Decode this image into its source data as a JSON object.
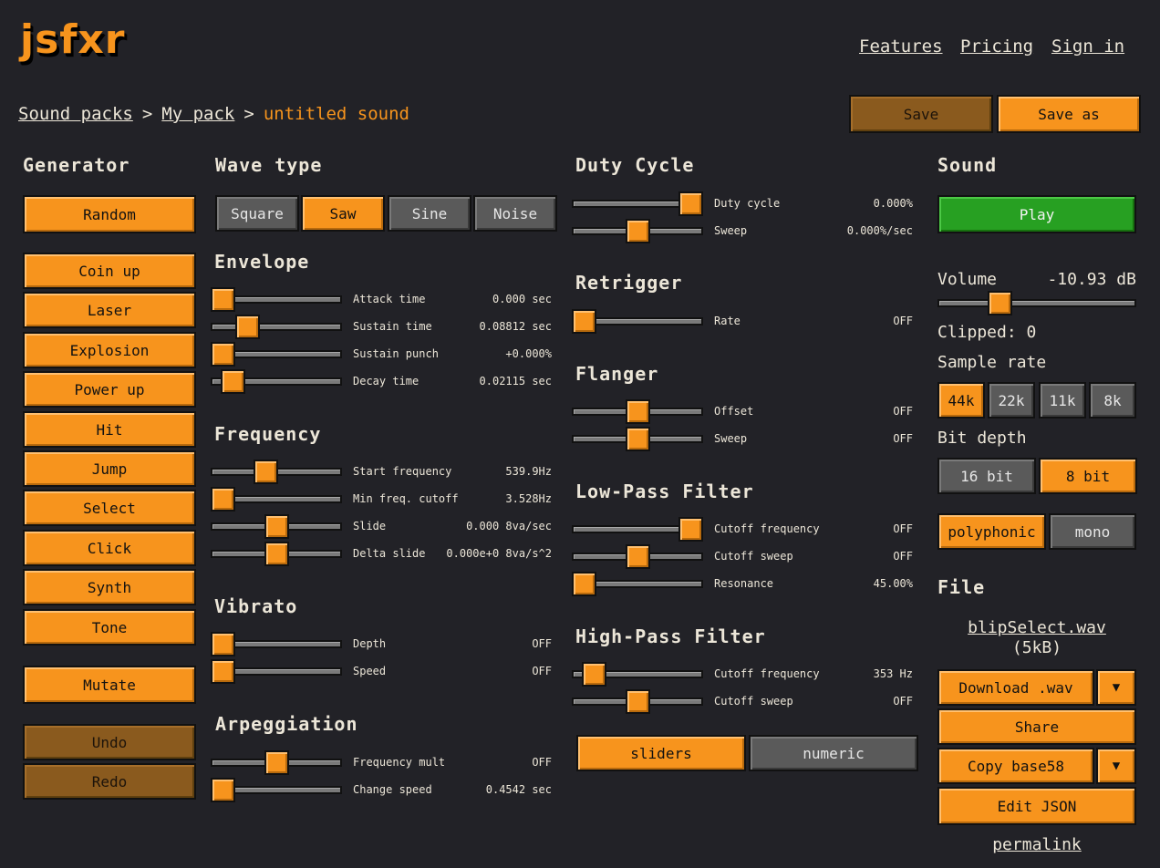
{
  "header": {
    "logo": "jsfxr",
    "nav": [
      "Features",
      "Pricing",
      "Sign in"
    ]
  },
  "breadcrumb": {
    "items": [
      "Sound packs",
      "My pack"
    ],
    "separator": ">",
    "current": "untitled sound"
  },
  "save": {
    "save_label": "Save",
    "save_as_label": "Save as"
  },
  "generator": {
    "title": "Generator",
    "random": "Random",
    "presets": [
      "Coin up",
      "Laser",
      "Explosion",
      "Power up",
      "Hit",
      "Jump",
      "Select",
      "Click",
      "Synth",
      "Tone"
    ],
    "mutate": "Mutate",
    "undo": "Undo",
    "redo": "Redo"
  },
  "wave": {
    "title": "Wave type",
    "options": [
      "Square",
      "Saw",
      "Sine",
      "Noise"
    ],
    "selected": "Saw"
  },
  "sections": {
    "envelope": "Envelope",
    "frequency": "Frequency",
    "vibrato": "Vibrato",
    "arpeggiation": "Arpeggiation",
    "duty": "Duty Cycle",
    "retrigger": "Retrigger",
    "flanger": "Flanger",
    "lpf": "Low-Pass Filter",
    "hpf": "High-Pass Filter"
  },
  "sliders": {
    "attack": {
      "label": "Attack time",
      "value": "0.000 sec",
      "level": 0.0
    },
    "sustain": {
      "label": "Sustain time",
      "value": "0.08812 sec",
      "level": 0.23
    },
    "punch": {
      "label": "Sustain punch",
      "value": "+0.000%",
      "level": 0.0
    },
    "decay": {
      "label": "Decay time",
      "value": "0.02115 sec",
      "level": 0.09
    },
    "start_freq": {
      "label": "Start frequency",
      "value": "539.9Hz",
      "level": 0.4
    },
    "min_freq": {
      "label": "Min freq. cutoff",
      "value": "3.528Hz",
      "level": 0.0
    },
    "slide": {
      "label": "Slide",
      "value": "0.000 8va/sec",
      "level": 0.5
    },
    "delta_slide": {
      "label": "Delta slide",
      "value": "0.000e+0 8va/s^2",
      "level": 0.5
    },
    "vib_depth": {
      "label": "Depth",
      "value": "OFF",
      "level": 0.0
    },
    "vib_speed": {
      "label": "Speed",
      "value": "OFF",
      "level": 0.0
    },
    "arp_mult": {
      "label": "Frequency mult",
      "value": "OFF",
      "level": 0.5
    },
    "arp_speed": {
      "label": "Change speed",
      "value": "0.4542 sec",
      "level": 0.0
    },
    "duty": {
      "label": "Duty cycle",
      "value": "0.000%",
      "level": 1.0
    },
    "duty_sweep": {
      "label": "Sweep",
      "value": "0.000%/sec",
      "level": 0.5
    },
    "retrig_rate": {
      "label": "Rate",
      "value": "OFF",
      "level": 0.0
    },
    "flanger_offset": {
      "label": "Offset",
      "value": "OFF",
      "level": 0.5
    },
    "flanger_sweep": {
      "label": "Sweep",
      "value": "OFF",
      "level": 0.5
    },
    "lpf_cutoff": {
      "label": "Cutoff frequency",
      "value": "OFF",
      "level": 1.0
    },
    "lpf_sweep": {
      "label": "Cutoff sweep",
      "value": "OFF",
      "level": 0.5
    },
    "lpf_res": {
      "label": "Resonance",
      "value": "45.00%",
      "level": 0.0
    },
    "hpf_cutoff": {
      "label": "Cutoff frequency",
      "value": "353 Hz",
      "level": 0.09
    },
    "hpf_sweep": {
      "label": "Cutoff sweep",
      "value": "OFF",
      "level": 0.5
    }
  },
  "view_mode": {
    "sliders": "sliders",
    "numeric": "numeric",
    "selected": "sliders"
  },
  "sound": {
    "title": "Sound",
    "play": "Play",
    "volume_label": "Volume",
    "volume_value": "-10.93 dB",
    "volume_level": 0.29,
    "clipped": "Clipped: 0",
    "sample_rate_title": "Sample rate",
    "sample_rates": [
      "44k",
      "22k",
      "11k",
      "8k"
    ],
    "sample_rate_selected": "44k",
    "bit_depth_title": "Bit depth",
    "bit_depths": [
      "16 bit",
      "8 bit"
    ],
    "bit_depth_selected": "8 bit",
    "modes": [
      "polyphonic",
      "mono"
    ],
    "mode_selected": "polyphonic"
  },
  "file": {
    "title": "File",
    "filename": "blipSelect.wav",
    "size": "(5kB)",
    "download": "Download .wav",
    "share": "Share",
    "copy": "Copy base58",
    "edit_json": "Edit JSON",
    "permalink": "permalink",
    "dropdown_glyph": "▼"
  },
  "colors": {
    "accent": "#f7941d",
    "background": "#222227",
    "play": "#27a022"
  }
}
